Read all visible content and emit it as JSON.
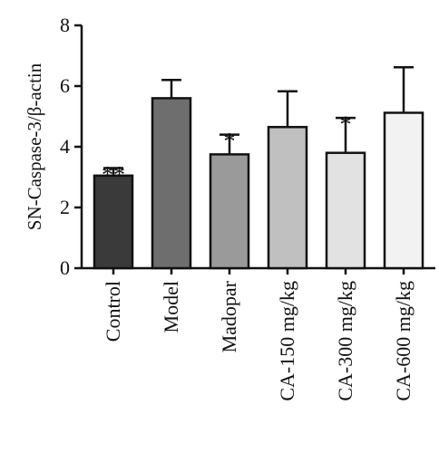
{
  "chart_data": {
    "type": "bar",
    "ylabel": "SN-Caspase-3/β-actin",
    "ylim": [
      0,
      8
    ],
    "yticks": [
      0,
      2,
      4,
      6,
      8
    ],
    "categories": [
      "Control",
      "Model",
      "Madopar",
      "CA-150 mg/kg",
      "CA-300 mg/kg",
      "CA-600 mg/kg"
    ],
    "values": [
      3.05,
      5.6,
      3.75,
      4.65,
      3.8,
      5.12
    ],
    "errors": [
      0.25,
      0.6,
      0.65,
      1.18,
      1.15,
      1.5
    ],
    "significance": [
      "**",
      "",
      "*",
      "",
      "*",
      ""
    ],
    "bar_colors": [
      "#3a3a3a",
      "#6e6e6e",
      "#9a9a9a",
      "#c0c0c0",
      "#e2e2e2",
      "#f2f2f2"
    ],
    "grid": false,
    "legend": "none"
  }
}
